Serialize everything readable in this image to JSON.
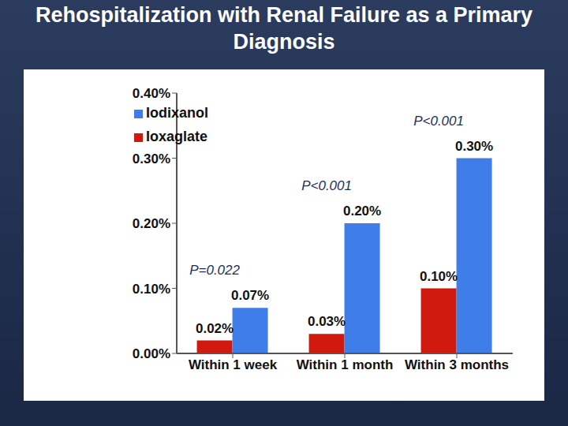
{
  "chart_data": {
    "type": "bar",
    "title": "Rehospitalization with Renal Failure as a Primary Diagnosis",
    "categories": [
      "Within 1 week",
      "Within 1 month",
      "Within 3 months"
    ],
    "series": [
      {
        "name": "Ioxaglate",
        "color": "#d11a0f",
        "values": [
          0.02,
          0.03,
          0.1
        ],
        "value_labels": [
          "0.02%",
          "0.03%",
          "0.10%"
        ]
      },
      {
        "name": "Iodixanol",
        "color": "#3f7ee8",
        "values": [
          0.07,
          0.2,
          0.3
        ],
        "value_labels": [
          "0.07%",
          "0.20%",
          "0.30%"
        ]
      }
    ],
    "annotations": [
      "P=0.022",
      "P<0.001",
      "P<0.001"
    ],
    "ylim": [
      0,
      0.4
    ],
    "yticks": [
      {
        "value": 0,
        "label": "0.00%"
      },
      {
        "value": 0.1,
        "label": "0.10%"
      },
      {
        "value": 0.2,
        "label": "0.20%"
      },
      {
        "value": 0.3,
        "label": "0.30%"
      },
      {
        "value": 0.4,
        "label": "0.40%"
      }
    ],
    "grid": false,
    "legend": "top-left",
    "data_labels": true
  }
}
